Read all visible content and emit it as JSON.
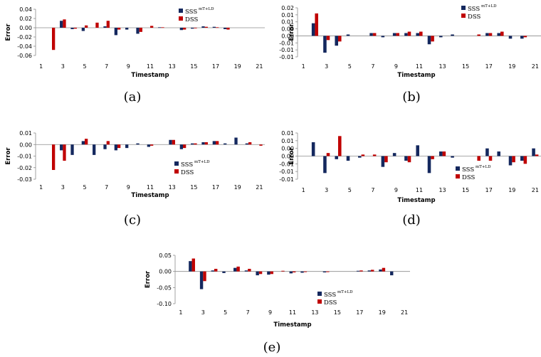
{
  "colors": {
    "sss": "#14285e",
    "dss": "#c00000",
    "axis": "#8c8c8c"
  },
  "chart_data": [
    {
      "type": "bar",
      "caption": "(a)",
      "xlabel": "Timestamp",
      "ylabel": "Error",
      "ylim": [
        -0.06,
        0.04
      ],
      "yticks": [
        0.04,
        0.02,
        0.0,
        -0.02,
        -0.04,
        -0.06
      ],
      "ytick_labels": [
        "0.04",
        "0.02",
        "0.00",
        "-0.02",
        "-0.04",
        "-0.06"
      ],
      "x": [
        1,
        2,
        3,
        4,
        5,
        6,
        7,
        8,
        9,
        10,
        11,
        12,
        13,
        14,
        15,
        16,
        17,
        18,
        19,
        20,
        21
      ],
      "xtick_labels": [
        "1",
        "3",
        "5",
        "7",
        "9",
        "11",
        "13",
        "15",
        "17",
        "19",
        "21"
      ],
      "legend": {
        "sss": "SSS",
        "sss_sup": "mT+LD",
        "dss": "DSS"
      },
      "series": [
        {
          "name": "SSS",
          "values": [
            0,
            0,
            0.015,
            -0.003,
            -0.007,
            0,
            0.003,
            -0.016,
            -0.004,
            -0.013,
            0,
            0.001,
            0,
            -0.005,
            -0.002,
            0.003,
            0.002,
            -0.003,
            0,
            0,
            0
          ]
        },
        {
          "name": "DSS",
          "values": [
            0,
            -0.048,
            0.018,
            -0.002,
            0.005,
            0.011,
            0.015,
            -0.004,
            0,
            -0.009,
            0.004,
            0.001,
            0,
            -0.004,
            -0.001,
            0.002,
            0.001,
            -0.004,
            0,
            0,
            0
          ]
        }
      ]
    },
    {
      "type": "bar",
      "caption": "(b)",
      "xlabel": "Timestamp",
      "ylabel": "Error",
      "ylim": [
        -0.015,
        0.02
      ],
      "yticks": [
        0.02,
        0.015,
        0.01,
        0.005,
        0.0,
        -0.005,
        -0.01,
        -0.015
      ],
      "ytick_labels": [
        "0.02",
        "0.01",
        "0.01",
        "0.00",
        "0.00",
        "-0.01",
        "-0.01",
        "-0.01"
      ],
      "x": [
        1,
        2,
        3,
        4,
        5,
        6,
        7,
        8,
        9,
        10,
        11,
        12,
        13,
        14,
        15,
        16,
        17,
        18,
        19,
        20,
        21
      ],
      "xtick_labels": [
        "1",
        "3",
        "5",
        "7",
        "9",
        "11",
        "13",
        "15",
        "17",
        "19",
        "21"
      ],
      "legend": {
        "sss": "SSS",
        "sss_sup": "mT+LD",
        "dss": "DSS"
      },
      "series": [
        {
          "name": "SSS",
          "values": [
            0,
            0.009,
            -0.012,
            -0.007,
            0.001,
            0,
            0.002,
            -0.001,
            0.002,
            0.002,
            0.002,
            -0.006,
            -0.001,
            0.001,
            0,
            0,
            0.002,
            0.002,
            -0.002,
            -0.002,
            0
          ]
        },
        {
          "name": "DSS",
          "values": [
            0,
            0.016,
            -0.003,
            -0.004,
            0,
            0,
            0.002,
            0,
            0.002,
            0.003,
            0.003,
            -0.004,
            0,
            0,
            0,
            0.001,
            0.002,
            0.003,
            0,
            -0.001,
            0
          ]
        }
      ]
    },
    {
      "type": "bar",
      "caption": "(c)",
      "xlabel": "Timestamp",
      "ylabel": "Error",
      "ylim": [
        -0.03,
        0.01
      ],
      "yticks": [
        0.01,
        0.0,
        -0.01,
        -0.02,
        -0.03
      ],
      "ytick_labels": [
        "0.01",
        "0.00",
        "-0.01",
        "-0.02",
        "-0.03"
      ],
      "x": [
        1,
        2,
        3,
        4,
        5,
        6,
        7,
        8,
        9,
        10,
        11,
        12,
        13,
        14,
        15,
        16,
        17,
        18,
        19,
        20,
        21
      ],
      "xtick_labels": [
        "1",
        "3",
        "5",
        "7",
        "9",
        "11",
        "13",
        "15",
        "17",
        "19",
        "21"
      ],
      "legend": {
        "sss": "SSS",
        "sss_sup": "mT+LD",
        "dss": "DSS"
      },
      "series": [
        {
          "name": "SSS",
          "values": [
            0,
            0,
            -0.005,
            -0.009,
            0.003,
            -0.009,
            -0.004,
            -0.005,
            -0.003,
            0.001,
            -0.002,
            0,
            0.004,
            -0.004,
            0.001,
            0.002,
            0.003,
            0.001,
            0.006,
            0.001,
            0
          ]
        },
        {
          "name": "DSS",
          "values": [
            0,
            -0.022,
            -0.014,
            0,
            0.005,
            0,
            0.003,
            -0.003,
            0,
            0,
            -0.001,
            0,
            0.004,
            -0.003,
            0.001,
            0.002,
            0.003,
            0,
            0,
            0.002,
            -0.001
          ]
        }
      ]
    },
    {
      "type": "bar",
      "caption": "(d)",
      "xlabel": "Timestamp",
      "ylabel": "Error",
      "ylim": [
        -0.015,
        0.015
      ],
      "yticks": [
        0.015,
        0.01,
        0.005,
        0.0,
        -0.005,
        -0.01,
        -0.015
      ],
      "ytick_labels": [
        "0.01",
        "0.01",
        "0.00",
        "0.00",
        "-0.01",
        "-0.01",
        "-0.01"
      ],
      "x": [
        1,
        2,
        3,
        4,
        5,
        6,
        7,
        8,
        9,
        10,
        11,
        12,
        13,
        14,
        15,
        16,
        17,
        18,
        19,
        20,
        21
      ],
      "xtick_labels": [
        "1",
        "3",
        "5",
        "7",
        "9",
        "11",
        "13",
        "15",
        "17",
        "19",
        "21"
      ],
      "legend": {
        "sss": "SSS",
        "sss_sup": "mT+LD",
        "dss": "DSS"
      },
      "series": [
        {
          "name": "SSS",
          "values": [
            0,
            0.009,
            -0.011,
            -0.002,
            -0.003,
            -0.001,
            0,
            -0.007,
            0.002,
            -0.003,
            0.007,
            -0.011,
            0.003,
            -0.001,
            0,
            0,
            0.005,
            0.003,
            -0.006,
            -0.003,
            0.005
          ]
        },
        {
          "name": "DSS",
          "values": [
            0,
            0,
            0.002,
            0.013,
            0,
            0.001,
            0.001,
            -0.004,
            0,
            -0.004,
            0,
            -0.002,
            0.003,
            0,
            0,
            -0.003,
            -0.003,
            0,
            -0.004,
            -0.005,
            0.001
          ]
        }
      ]
    },
    {
      "type": "bar",
      "caption": "(e)",
      "xlabel": "Timestamp",
      "ylabel": "Error",
      "ylim": [
        -0.1,
        0.05
      ],
      "yticks": [
        0.05,
        0.0,
        -0.05,
        -0.1
      ],
      "ytick_labels": [
        "0.05",
        "0.00",
        "-0.05",
        "-0.10"
      ],
      "x": [
        1,
        2,
        3,
        4,
        5,
        6,
        7,
        8,
        9,
        10,
        11,
        12,
        13,
        14,
        15,
        16,
        17,
        18,
        19,
        20,
        21
      ],
      "xtick_labels": [
        "1",
        "3",
        "5",
        "7",
        "9",
        "11",
        "13",
        "15",
        "17",
        "19",
        "21"
      ],
      "legend": {
        "sss": "SSS",
        "sss_sup": "mT+LD",
        "dss": "DSS"
      },
      "series": [
        {
          "name": "SSS",
          "values": [
            0,
            0.032,
            -0.055,
            0.003,
            -0.005,
            0.011,
            0.003,
            -0.012,
            -0.01,
            0,
            -0.006,
            -0.004,
            0,
            -0.003,
            0,
            0,
            0.002,
            0.003,
            0.006,
            -0.012,
            0
          ]
        },
        {
          "name": "DSS",
          "values": [
            0,
            0.04,
            -0.03,
            0.008,
            0,
            0.015,
            0.008,
            -0.008,
            -0.008,
            0.002,
            -0.003,
            -0.002,
            0,
            -0.002,
            0,
            0,
            0.003,
            0.005,
            0.011,
            0,
            0
          ]
        }
      ]
    }
  ]
}
